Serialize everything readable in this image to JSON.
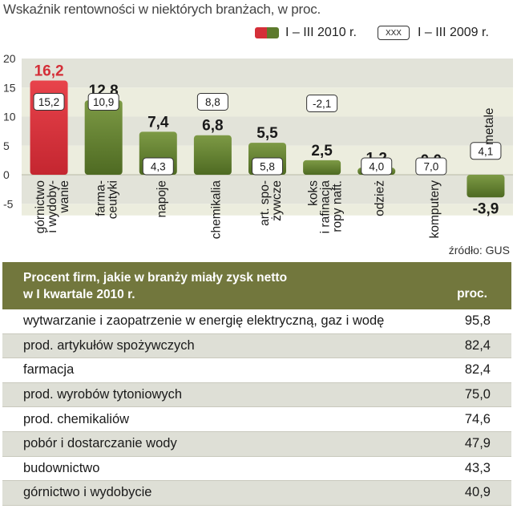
{
  "title": "Wskaźnik rentowności w niektórych branżach, w proc.",
  "legend": {
    "current_label": "I – III 2010 r.",
    "previous_box": "XXX",
    "previous_label": "I – III 2009 r."
  },
  "source": "źródło: GUS",
  "colors": {
    "highlight_bar": "#d42f38",
    "bar": "#5d7a2c",
    "table_header": "#72773d",
    "band_dark": "#e2e3d9",
    "band_light": "#ecedde"
  },
  "chart_data": {
    "type": "bar",
    "title": "Wskaźnik rentowności w niektórych branżach, w proc.",
    "ylim": [
      -7,
      20
    ],
    "yticks": [
      -5,
      0,
      5,
      10,
      15,
      20
    ],
    "categories": [
      [
        "górnictwo",
        "i wydoby-",
        "wanie"
      ],
      [
        "farma-",
        "ceutyki"
      ],
      [
        "napoje"
      ],
      [
        "chemikalia"
      ],
      [
        "art. spo-",
        "żywcze"
      ],
      [
        "koks",
        "i rafinacja",
        "ropy naft."
      ],
      [
        "odzież"
      ],
      [
        "komputery"
      ],
      [
        "metale"
      ]
    ],
    "series": [
      {
        "name": "I – III 2010 r.",
        "values": [
          16.2,
          12.8,
          7.4,
          6.8,
          5.5,
          2.5,
          1.2,
          0.0,
          -3.9
        ]
      },
      {
        "name": "I – III 2009 r.",
        "values": [
          15.2,
          10.9,
          4.3,
          8.8,
          5.8,
          -2.1,
          4.0,
          7.0,
          4.1
        ]
      }
    ],
    "value_labels_2010": [
      "16,2",
      "12,8",
      "7,4",
      "6,8",
      "5,5",
      "2,5",
      "1,2",
      "0,0",
      "-3,9"
    ],
    "value_labels_2009": [
      "15,2",
      "10,9",
      "4,3",
      "8,8",
      "5,8",
      "-2,1",
      "4,0",
      "7,0",
      "4,1"
    ],
    "highlight_index": 0
  },
  "table": {
    "header_line1": "Procent firm, jakie w branży miały zysk netto",
    "header_line2": "w I kwartale 2010 r.",
    "header_unit": "proc.",
    "rows": [
      {
        "label": "wytwarzanie i zaopatrzenie w energię elektryczną, gaz i wodę",
        "value": "95,8"
      },
      {
        "label": "prod. artykułów spożywczych",
        "value": "82,4"
      },
      {
        "label": "farmacja",
        "value": "82,4"
      },
      {
        "label": "prod. wyrobów tytoniowych",
        "value": "75,0"
      },
      {
        "label": "prod. chemikaliów",
        "value": "74,6"
      },
      {
        "label": "pobór i dostarczanie wody",
        "value": "47,9"
      },
      {
        "label": "budownictwo",
        "value": "43,3"
      },
      {
        "label": "górnictwo i wydobycie",
        "value": "40,9"
      }
    ]
  }
}
